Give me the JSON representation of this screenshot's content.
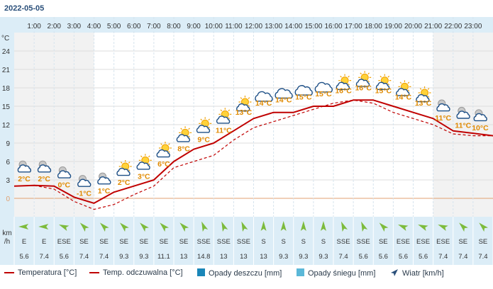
{
  "date": "2022-05-05",
  "hours": [
    "1:00",
    "2:00",
    "3:00",
    "4:00",
    "5:00",
    "6:00",
    "7:00",
    "8:00",
    "9:00",
    "10:00",
    "11:00",
    "12:00",
    "13:00",
    "14:00",
    "15:00",
    "16:00",
    "17:00",
    "18:00",
    "19:00",
    "20:00",
    "21:00",
    "22:00",
    "23:00"
  ],
  "y_axis": {
    "unit": "°C",
    "ticks": [
      0,
      3,
      6,
      9,
      12,
      15,
      18,
      21,
      24
    ],
    "zero_color": "#e0a070"
  },
  "wind_axis_label": {
    "line1": "km",
    "line2": "/h"
  },
  "colors": {
    "temperature": "#c00000",
    "feels_like": "#c00000",
    "temp_label": "#e08a00",
    "night_band": "#f2f2f2",
    "wind_band": "#dcedf7",
    "rain": "#1a86b8",
    "snow": "#5bb8d8",
    "arrow": "#7dbb3c"
  },
  "chart_data": {
    "type": "line",
    "x": [
      "0:00",
      "1:00",
      "2:00",
      "3:00",
      "4:00",
      "5:00",
      "6:00",
      "7:00",
      "8:00",
      "9:00",
      "10:00",
      "11:00",
      "12:00",
      "13:00",
      "14:00",
      "15:00",
      "16:00",
      "17:00",
      "18:00",
      "19:00",
      "20:00",
      "21:00",
      "22:00",
      "23:00",
      "24:00"
    ],
    "ylim": [
      -3,
      27
    ],
    "series": [
      {
        "name": "Temperatura [°C]",
        "style": "solid",
        "values": [
          2.0,
          2.1,
          2.0,
          0.2,
          -0.8,
          1.0,
          2.0,
          3.0,
          6.0,
          8.0,
          9.0,
          11.0,
          13.0,
          14.0,
          14.0,
          15.0,
          15.0,
          16.0,
          16.0,
          15.0,
          14.0,
          13.0,
          11.0,
          10.6,
          10.2
        ]
      },
      {
        "name": "Temp. odczuwalna [°C]",
        "style": "dashed",
        "values": [
          2.0,
          2.1,
          1.5,
          -0.5,
          -1.8,
          -1.0,
          0.6,
          2.0,
          5.0,
          6.0,
          7.0,
          9.5,
          11.5,
          12.5,
          13.5,
          14.5,
          15.5,
          16.0,
          15.5,
          14.0,
          13.0,
          12.0,
          10.5,
          10.2,
          10.2
        ]
      }
    ],
    "hourly": [
      {
        "hour": "1:00",
        "temp": "2°C",
        "icon": "cloud-moon-icon",
        "night": true,
        "wind_dir": "E",
        "wind_speed": "5.6"
      },
      {
        "hour": "2:00",
        "temp": "2°C",
        "icon": "cloud-moon-icon",
        "night": true,
        "wind_dir": "E",
        "wind_speed": "7.4"
      },
      {
        "hour": "3:00",
        "temp": "0°C",
        "icon": "cloud-moon-icon",
        "night": true,
        "wind_dir": "ESE",
        "wind_speed": "5.6"
      },
      {
        "hour": "4:00",
        "temp": "-1°C",
        "icon": "cloud-moon-icon",
        "night": true,
        "wind_dir": "SE",
        "wind_speed": "7.4"
      },
      {
        "hour": "5:00",
        "temp": "1°C",
        "icon": "cloud-moon-icon",
        "night": false,
        "wind_dir": "SE",
        "wind_speed": "7.4"
      },
      {
        "hour": "6:00",
        "temp": "2°C",
        "icon": "cloud-sun-icon",
        "night": false,
        "wind_dir": "SE",
        "wind_speed": "9.3"
      },
      {
        "hour": "7:00",
        "temp": "3°C",
        "icon": "cloud-sun-icon",
        "night": false,
        "wind_dir": "SE",
        "wind_speed": "9.3"
      },
      {
        "hour": "8:00",
        "temp": "6°C",
        "icon": "cloud-sun-icon",
        "night": false,
        "wind_dir": "SE",
        "wind_speed": "11.1"
      },
      {
        "hour": "9:00",
        "temp": "8°C",
        "icon": "cloud-sun-icon",
        "night": false,
        "wind_dir": "SE",
        "wind_speed": "13"
      },
      {
        "hour": "10:00",
        "temp": "9°C",
        "icon": "cloud-sun-icon",
        "night": false,
        "wind_dir": "SSE",
        "wind_speed": "14.8"
      },
      {
        "hour": "11:00",
        "temp": "11°C",
        "icon": "cloud-sun-icon",
        "night": false,
        "wind_dir": "SSE",
        "wind_speed": "13"
      },
      {
        "hour": "12:00",
        "temp": "13°C",
        "icon": "cloud-sun-icon",
        "night": false,
        "wind_dir": "SSE",
        "wind_speed": "13"
      },
      {
        "hour": "13:00",
        "temp": "14°C",
        "icon": "cloud-icon",
        "night": false,
        "wind_dir": "S",
        "wind_speed": "13"
      },
      {
        "hour": "14:00",
        "temp": "14°C",
        "icon": "cloud-icon",
        "night": false,
        "wind_dir": "S",
        "wind_speed": "9.3"
      },
      {
        "hour": "15:00",
        "temp": "15°C",
        "icon": "cloud-icon",
        "night": false,
        "wind_dir": "S",
        "wind_speed": "9.3"
      },
      {
        "hour": "16:00",
        "temp": "15°C",
        "icon": "cloud-icon",
        "night": false,
        "wind_dir": "S",
        "wind_speed": "9.3"
      },
      {
        "hour": "17:00",
        "temp": "16°C",
        "icon": "cloud-sun-icon",
        "night": false,
        "wind_dir": "SSE",
        "wind_speed": "7.4"
      },
      {
        "hour": "18:00",
        "temp": "16°C",
        "icon": "cloud-sun-icon",
        "night": false,
        "wind_dir": "SSE",
        "wind_speed": "5.6"
      },
      {
        "hour": "19:00",
        "temp": "15°C",
        "icon": "cloud-sun-icon",
        "night": false,
        "wind_dir": "SE",
        "wind_speed": "5.6"
      },
      {
        "hour": "20:00",
        "temp": "14°C",
        "icon": "cloud-sun-icon",
        "night": false,
        "wind_dir": "ESE",
        "wind_speed": "5.6"
      },
      {
        "hour": "21:00",
        "temp": "13°C",
        "icon": "cloud-sun-icon",
        "night": false,
        "wind_dir": "ESE",
        "wind_speed": "5.6"
      },
      {
        "hour": "22:00",
        "temp": "11°C",
        "icon": "cloud-moon-icon",
        "night": true,
        "wind_dir": "ESE",
        "wind_speed": "7.4"
      },
      {
        "hour": "23:00",
        "temp": "11°C",
        "icon": "cloud-moon-icon",
        "night": true,
        "wind_dir": "SE",
        "wind_speed": "7.4"
      },
      {
        "hour": "24:00",
        "temp": "10°C",
        "icon": "cloud-moon-icon",
        "night": true,
        "wind_dir": "SE",
        "wind_speed": "7.4"
      }
    ]
  },
  "legend": {
    "temperature": "Temperatura [°C]",
    "feels_like": "Temp. odczuwalna [°C]",
    "rain": "Opady deszczu [mm]",
    "snow": "Opady śniegu [mm]",
    "wind": "Wiatr [km/h]"
  }
}
